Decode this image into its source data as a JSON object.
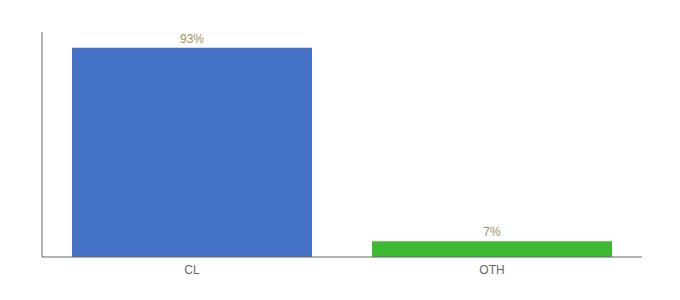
{
  "chart_data": {
    "type": "bar",
    "categories": [
      "CL",
      "OTH"
    ],
    "values": [
      93,
      7
    ],
    "value_labels": [
      "93%",
      "7%"
    ],
    "colors": [
      "#4472c4",
      "#3cb832"
    ],
    "ylim": [
      0,
      100
    ],
    "data_labels": true,
    "tick_labels": "x",
    "grid": false
  }
}
